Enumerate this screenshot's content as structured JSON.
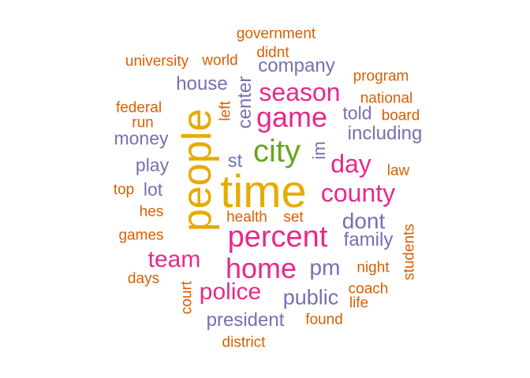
{
  "colors": {
    "orange": "#D95F02",
    "purple": "#7570B3",
    "magenta": "#E7298A",
    "green": "#66A61E",
    "gold": "#E6AB02",
    "background": "#FFFFFF"
  },
  "words": [
    {
      "text": "time",
      "color": "gold"
    },
    {
      "text": "people",
      "color": "gold"
    },
    {
      "text": "percent",
      "color": "magenta"
    },
    {
      "text": "city",
      "color": "green"
    },
    {
      "text": "game",
      "color": "magenta"
    },
    {
      "text": "home",
      "color": "magenta"
    },
    {
      "text": "season",
      "color": "magenta"
    },
    {
      "text": "county",
      "color": "magenta"
    },
    {
      "text": "day",
      "color": "magenta"
    },
    {
      "text": "team",
      "color": "magenta"
    },
    {
      "text": "police",
      "color": "magenta"
    },
    {
      "text": "public",
      "color": "purple"
    },
    {
      "text": "dont",
      "color": "purple"
    },
    {
      "text": "pm",
      "color": "purple"
    },
    {
      "text": "president",
      "color": "purple"
    },
    {
      "text": "including",
      "color": "purple"
    },
    {
      "text": "company",
      "color": "purple"
    },
    {
      "text": "family",
      "color": "purple"
    },
    {
      "text": "center",
      "color": "purple"
    },
    {
      "text": "house",
      "color": "purple"
    },
    {
      "text": "money",
      "color": "purple"
    },
    {
      "text": "st",
      "color": "purple"
    },
    {
      "text": "told",
      "color": "purple"
    },
    {
      "text": "play",
      "color": "purple"
    },
    {
      "text": "lot",
      "color": "purple"
    },
    {
      "text": "im",
      "color": "purple"
    },
    {
      "text": "government",
      "color": "orange"
    },
    {
      "text": "university",
      "color": "orange"
    },
    {
      "text": "world",
      "color": "orange"
    },
    {
      "text": "didnt",
      "color": "orange"
    },
    {
      "text": "program",
      "color": "orange"
    },
    {
      "text": "federal",
      "color": "orange"
    },
    {
      "text": "national",
      "color": "orange"
    },
    {
      "text": "run",
      "color": "orange"
    },
    {
      "text": "board",
      "color": "orange"
    },
    {
      "text": "left",
      "color": "orange"
    },
    {
      "text": "law",
      "color": "orange"
    },
    {
      "text": "top",
      "color": "orange"
    },
    {
      "text": "hes",
      "color": "orange"
    },
    {
      "text": "health",
      "color": "orange"
    },
    {
      "text": "set",
      "color": "orange"
    },
    {
      "text": "games",
      "color": "orange"
    },
    {
      "text": "students",
      "color": "orange"
    },
    {
      "text": "night",
      "color": "orange"
    },
    {
      "text": "days",
      "color": "orange"
    },
    {
      "text": "coach",
      "color": "orange"
    },
    {
      "text": "court",
      "color": "orange"
    },
    {
      "text": "life",
      "color": "orange"
    },
    {
      "text": "found",
      "color": "orange"
    },
    {
      "text": "district",
      "color": "orange"
    }
  ]
}
